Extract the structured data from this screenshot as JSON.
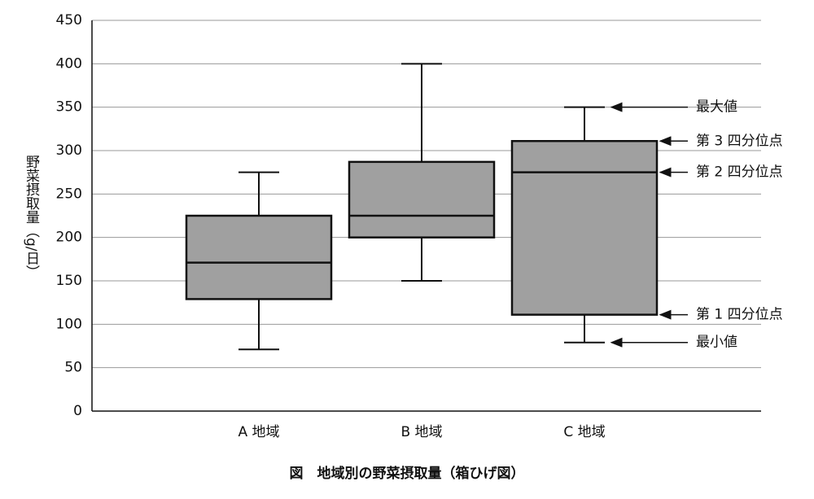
{
  "chart_data": {
    "type": "box",
    "title": "図　地域別の野菜摂取量（箱ひげ図）",
    "y_label": "野菜摂取量（g/日）",
    "categories": [
      "A 地域",
      "B 地域",
      "C 地域"
    ],
    "boxes": [
      {
        "min": 71,
        "q1": 129,
        "median": 171,
        "q3": 225,
        "max": 275
      },
      {
        "min": 150,
        "q1": 200,
        "median": 225,
        "q3": 287,
        "max": 400
      },
      {
        "min": 79,
        "q1": 111,
        "median": 275,
        "q3": 311,
        "max": 350
      }
    ],
    "color": "#a0a0a0",
    "ylim": [
      0,
      450
    ],
    "yticks": [
      0,
      50,
      100,
      150,
      200,
      250,
      300,
      350,
      400,
      450
    ],
    "grid": true,
    "annotations": [
      "最大値",
      "第 3 四分位点",
      "第 2 四分位点",
      "第 1 四分位点",
      "最小値"
    ]
  }
}
